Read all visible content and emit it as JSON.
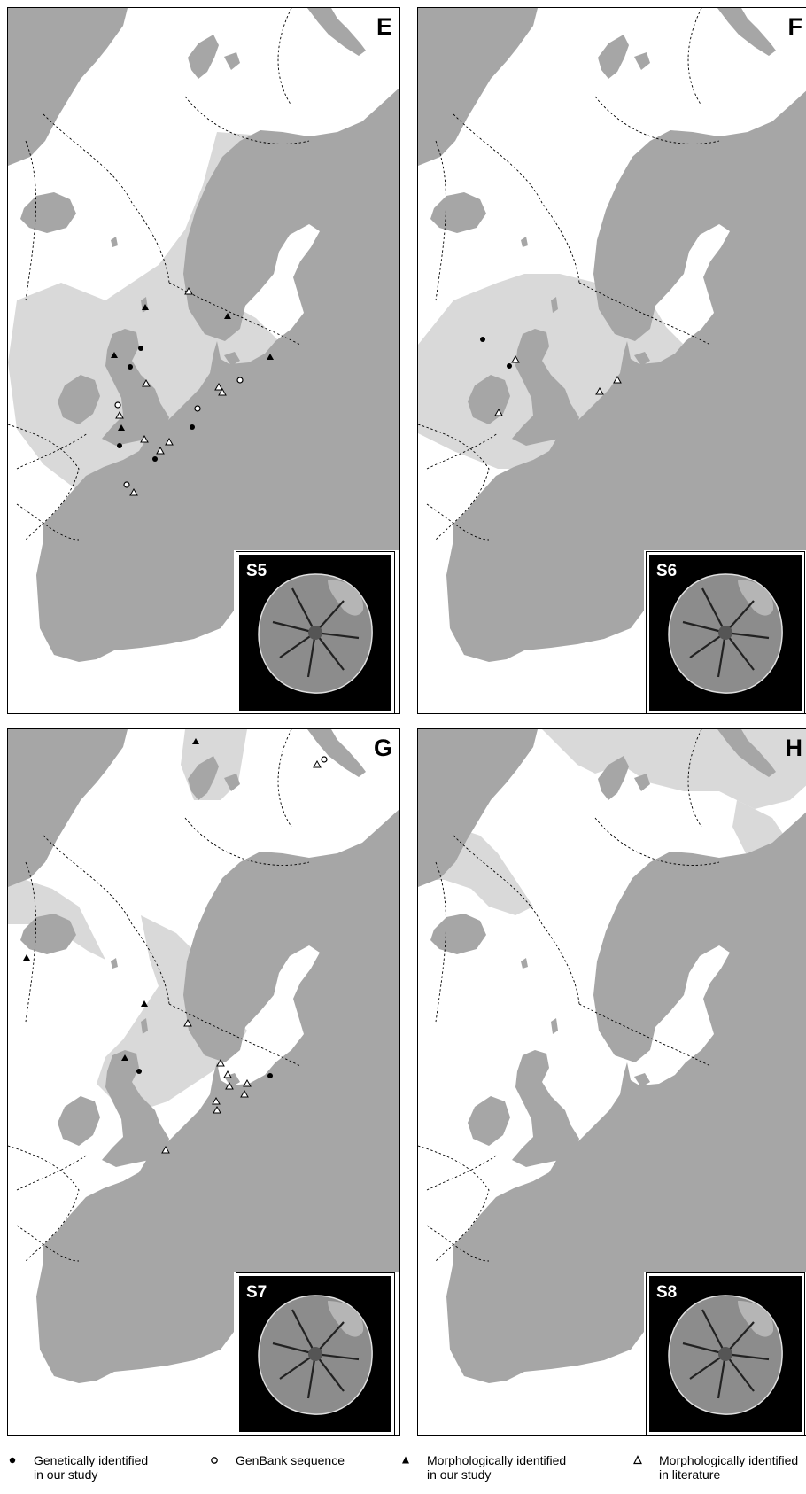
{
  "panels": [
    {
      "letter": "E",
      "species": "S5"
    },
    {
      "letter": "F",
      "species": "S6"
    },
    {
      "letter": "G",
      "species": "S7"
    },
    {
      "letter": "H",
      "species": "S8"
    }
  ],
  "legend": [
    {
      "symbol": "filled-circle",
      "text": "Genetically identified\nin our study"
    },
    {
      "symbol": "open-circle",
      "text": "GenBank sequence"
    },
    {
      "symbol": "filled-triangle",
      "text": "Morphologically identified\nin our study"
    },
    {
      "symbol": "open-triangle",
      "text": "Morphologically identified\nin literature"
    }
  ],
  "colors": {
    "land": "#a6a6a6",
    "distribution": "#d9d9d9",
    "sea": "#ffffff",
    "inset_bg": "#000000"
  }
}
